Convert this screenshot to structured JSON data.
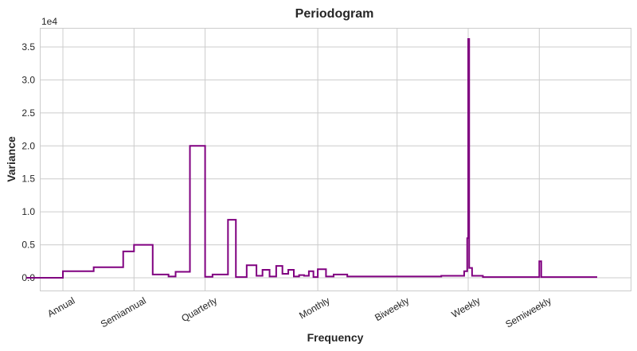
{
  "chart_data": {
    "type": "line",
    "title": "Periodogram",
    "xlabel": "Frequency",
    "ylabel": "Variance",
    "y_offset_label": "1e4",
    "x_scale": "log",
    "y_ticks": [
      "0.0",
      "0.5",
      "1.0",
      "1.5",
      "2.0",
      "2.5",
      "3.0",
      "3.5"
    ],
    "y_tick_values": [
      0,
      0.5,
      1.0,
      1.5,
      2.0,
      2.5,
      3.0,
      3.5
    ],
    "ylim": [
      -0.18,
      3.8
    ],
    "x_ticks": [
      "Annual",
      "Semiannual",
      "Quarterly",
      "Monthly",
      "Biweekly",
      "Weekly",
      "Semiweekly"
    ],
    "x_tick_values": [
      1,
      2,
      4,
      12,
      26,
      52,
      104
    ],
    "grid": true,
    "line_color": "#800080",
    "drawstyle": "steps",
    "series": [
      {
        "name": "Periodogram",
        "x": [
          0.7,
          1,
          1.35,
          1.8,
          2.0,
          2.4,
          2.8,
          3.0,
          3.45,
          4.0,
          4.3,
          5.0,
          5.4,
          6.0,
          6.6,
          7.0,
          7.5,
          8.0,
          8.5,
          9.0,
          9.5,
          10,
          10.5,
          11,
          11.5,
          12,
          13,
          14,
          16,
          20,
          26,
          40,
          50,
          51.5,
          52,
          52.5,
          54,
          60,
          80,
          104,
          106,
          160
        ],
        "values": [
          0.0,
          0.1,
          0.16,
          0.4,
          0.5,
          0.05,
          0.02,
          0.09,
          2.0,
          0.015,
          0.05,
          0.88,
          0.01,
          0.19,
          0.03,
          0.12,
          0.02,
          0.18,
          0.06,
          0.12,
          0.02,
          0.04,
          0.03,
          0.1,
          0.01,
          0.13,
          0.02,
          0.05,
          0.02,
          0.02,
          0.02,
          0.03,
          0.1,
          0.6,
          3.62,
          0.15,
          0.03,
          0.01,
          0.01,
          0.25,
          0.01,
          0.01
        ]
      }
    ]
  }
}
